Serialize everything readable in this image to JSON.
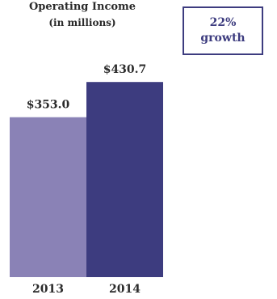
{
  "callout": {
    "line1": "22%",
    "line2": "growth",
    "border_color": "#3d3c7f"
  },
  "chart_data": {
    "type": "bar",
    "title": "Operating Income",
    "subtitle": "(in millions)",
    "categories": [
      "2013",
      "2014"
    ],
    "values": [
      353.0,
      430.7
    ],
    "data_labels": [
      "$353.0",
      "$430.7"
    ],
    "colors": [
      "#8a82b6",
      "#3d3c7f"
    ],
    "ylim": [
      0,
      440
    ],
    "grid": false,
    "legend": "none"
  }
}
